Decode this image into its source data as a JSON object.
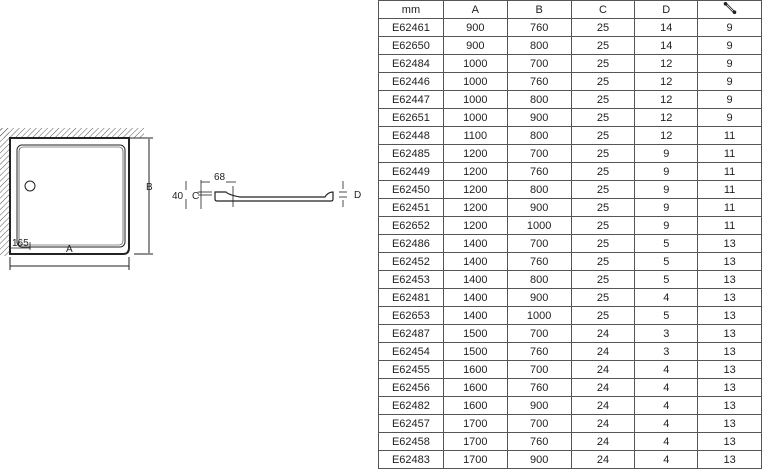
{
  "drawing": {
    "labels": {
      "a": "A",
      "b": "B",
      "c": "C",
      "d": "D",
      "offset_165": "165",
      "height_40": "40",
      "width_68": "68"
    }
  },
  "table": {
    "headers": [
      "mm",
      "A",
      "B",
      "C",
      "D"
    ],
    "last_header_icon": "wrench-icon",
    "rows": [
      [
        "E62461",
        "900",
        "760",
        "25",
        "14",
        "9"
      ],
      [
        "E62650",
        "900",
        "800",
        "25",
        "14",
        "9"
      ],
      [
        "E62484",
        "1000",
        "700",
        "25",
        "12",
        "9"
      ],
      [
        "E62446",
        "1000",
        "760",
        "25",
        "12",
        "9"
      ],
      [
        "E62447",
        "1000",
        "800",
        "25",
        "12",
        "9"
      ],
      [
        "E62651",
        "1000",
        "900",
        "25",
        "12",
        "9"
      ],
      [
        "E62448",
        "1100",
        "800",
        "25",
        "12",
        "11"
      ],
      [
        "E62485",
        "1200",
        "700",
        "25",
        "9",
        "11"
      ],
      [
        "E62449",
        "1200",
        "760",
        "25",
        "9",
        "11"
      ],
      [
        "E62450",
        "1200",
        "800",
        "25",
        "9",
        "11"
      ],
      [
        "E62451",
        "1200",
        "900",
        "25",
        "9",
        "11"
      ],
      [
        "E62652",
        "1200",
        "1000",
        "25",
        "9",
        "11"
      ],
      [
        "E62486",
        "1400",
        "700",
        "25",
        "5",
        "13"
      ],
      [
        "E62452",
        "1400",
        "760",
        "25",
        "5",
        "13"
      ],
      [
        "E62453",
        "1400",
        "800",
        "25",
        "5",
        "13"
      ],
      [
        "E62481",
        "1400",
        "900",
        "25",
        "4",
        "13"
      ],
      [
        "E62653",
        "1400",
        "1000",
        "25",
        "5",
        "13"
      ],
      [
        "E62487",
        "1500",
        "700",
        "24",
        "3",
        "13"
      ],
      [
        "E62454",
        "1500",
        "760",
        "24",
        "3",
        "13"
      ],
      [
        "E62455",
        "1600",
        "700",
        "24",
        "4",
        "13"
      ],
      [
        "E62456",
        "1600",
        "760",
        "24",
        "4",
        "13"
      ],
      [
        "E62482",
        "1600",
        "900",
        "24",
        "4",
        "13"
      ],
      [
        "E62457",
        "1700",
        "700",
        "24",
        "4",
        "13"
      ],
      [
        "E62458",
        "1700",
        "760",
        "24",
        "4",
        "13"
      ],
      [
        "E62483",
        "1700",
        "900",
        "24",
        "4",
        "13"
      ]
    ]
  }
}
